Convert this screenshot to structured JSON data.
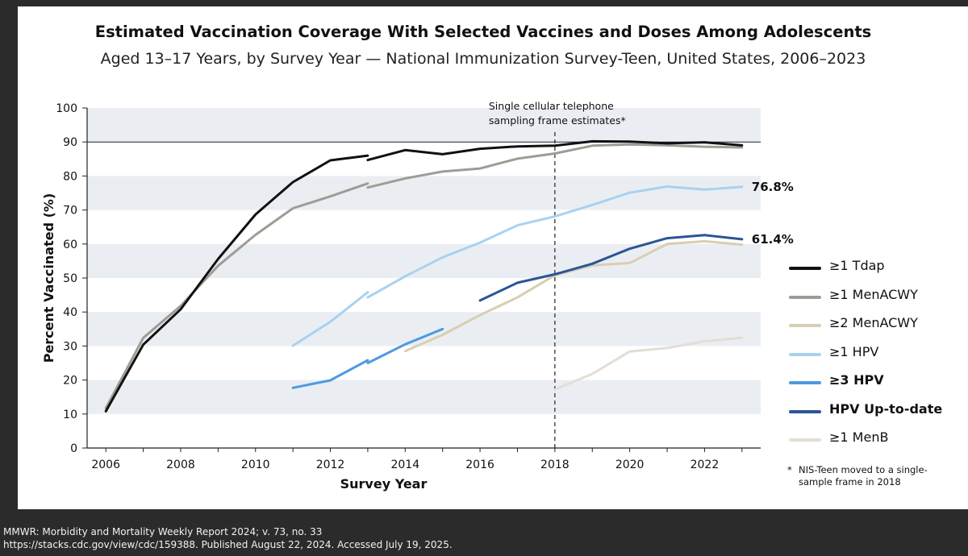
{
  "title": "Estimated Vaccination Coverage With Selected Vaccines and Doses Among Adolescents",
  "subtitle": "Aged 13–17 Years, by Survey Year — National Immunization Survey-Teen, United States, 2006–2023",
  "source": {
    "line1": "MMWR: Morbidity and Mortality Weekly Report 2024; v. 73, no. 33",
    "line2": "https://stacks.cdc.gov/view/cdc/159388. Published August 22, 2024. Accessed July 19, 2025."
  },
  "footnote": {
    "marker": "*",
    "text": "NIS-Teen moved to a single-sample frame in 2018"
  },
  "chart_data": {
    "type": "line",
    "xlabel": "Survey Year",
    "ylabel": "Percent Vaccinated (%)",
    "xlim": [
      2006,
      2023
    ],
    "ylim": [
      0,
      100
    ],
    "xticks": [
      2006,
      2008,
      2010,
      2012,
      2014,
      2016,
      2018,
      2020,
      2022
    ],
    "yticks": [
      0,
      10,
      20,
      30,
      40,
      50,
      60,
      70,
      80,
      90,
      100
    ],
    "grid": "alternating horizontal bands",
    "legend_position": "right",
    "reference_line": {
      "y": 90
    },
    "vline": {
      "x": 2018,
      "label_line1": "Single cellular telephone",
      "label_line2": "sampling frame estimates*"
    },
    "series": [
      {
        "name": "≥1 Tdap",
        "color": "#111111",
        "width": 3,
        "segments": [
          [
            [
              2006,
              10.8
            ],
            [
              2007,
              30.4
            ],
            [
              2008,
              40.8
            ],
            [
              2009,
              55.6
            ],
            [
              2010,
              68.7
            ],
            [
              2011,
              78.2
            ],
            [
              2012,
              84.6
            ],
            [
              2013,
              86.0
            ]
          ],
          [
            [
              2013,
              84.7
            ],
            [
              2014,
              87.6
            ],
            [
              2015,
              86.4
            ],
            [
              2016,
              88.0
            ],
            [
              2017,
              88.7
            ],
            [
              2018,
              88.9
            ],
            [
              2019,
              90.2
            ],
            [
              2020,
              90.1
            ],
            [
              2021,
              89.6
            ],
            [
              2022,
              89.9
            ],
            [
              2023,
              89.0
            ]
          ]
        ]
      },
      {
        "name": "≥1 MenACWY",
        "color": "#9d9d95",
        "width": 3,
        "segments": [
          [
            [
              2006,
              11.7
            ],
            [
              2007,
              32.4
            ],
            [
              2008,
              41.8
            ],
            [
              2009,
              53.6
            ],
            [
              2010,
              62.7
            ],
            [
              2011,
              70.5
            ],
            [
              2012,
              74.0
            ],
            [
              2013,
              77.8
            ]
          ],
          [
            [
              2013,
              76.6
            ],
            [
              2014,
              79.3
            ],
            [
              2015,
              81.3
            ],
            [
              2016,
              82.2
            ],
            [
              2017,
              85.1
            ],
            [
              2018,
              86.6
            ],
            [
              2019,
              88.9
            ],
            [
              2020,
              89.3
            ],
            [
              2021,
              89.0
            ],
            [
              2022,
              88.6
            ],
            [
              2023,
              88.4
            ]
          ]
        ]
      },
      {
        "name": "≥2 MenACWY",
        "color": "#d9ceb2",
        "width": 3,
        "segments": [
          [
            [
              2014,
              28.5
            ],
            [
              2015,
              33.3
            ],
            [
              2016,
              39.1
            ],
            [
              2017,
              44.3
            ],
            [
              2018,
              50.8
            ],
            [
              2019,
              53.7
            ],
            [
              2020,
              54.4
            ],
            [
              2021,
              60.0
            ],
            [
              2022,
              60.8
            ],
            [
              2023,
              59.8
            ]
          ]
        ]
      },
      {
        "name": "≥1 HPV",
        "color": "#a9d2ef",
        "width": 3,
        "segments": [
          [
            [
              2011,
              30.1
            ],
            [
              2012,
              37.1
            ],
            [
              2013,
              45.8
            ]
          ],
          [
            [
              2013,
              44.3
            ],
            [
              2014,
              50.5
            ],
            [
              2015,
              56.1
            ],
            [
              2016,
              60.4
            ],
            [
              2017,
              65.5
            ],
            [
              2018,
              68.1
            ],
            [
              2019,
              71.5
            ],
            [
              2020,
              75.1
            ],
            [
              2021,
              76.9
            ],
            [
              2022,
              76.0
            ],
            [
              2023,
              76.8
            ]
          ]
        ]
      },
      {
        "name": "≥3 HPV",
        "color": "#4d9ae2",
        "width": 3,
        "segments": [
          [
            [
              2011,
              17.7
            ],
            [
              2012,
              19.9
            ],
            [
              2013,
              25.8
            ]
          ],
          [
            [
              2013,
              25.0
            ],
            [
              2014,
              30.5
            ],
            [
              2015,
              35.0
            ]
          ]
        ]
      },
      {
        "name": "HPV Up-to-date",
        "color": "#2a5597",
        "width": 3,
        "segments": [
          [
            [
              2016,
              43.4
            ],
            [
              2017,
              48.6
            ],
            [
              2018,
              51.1
            ],
            [
              2019,
              54.2
            ],
            [
              2020,
              58.6
            ],
            [
              2021,
              61.7
            ],
            [
              2022,
              62.6
            ],
            [
              2023,
              61.4
            ]
          ]
        ]
      },
      {
        "name": "≥1 MenB",
        "color": "#e3ded4",
        "width": 3,
        "segments": [
          [
            [
              2018,
              17.2
            ],
            [
              2019,
              21.8
            ],
            [
              2020,
              28.4
            ],
            [
              2021,
              29.4
            ],
            [
              2022,
              31.4
            ],
            [
              2023,
              32.4
            ]
          ]
        ]
      }
    ],
    "annotations": [
      {
        "text": "76.8%",
        "x": 2023,
        "y": 76.8
      },
      {
        "text": "61.4%",
        "x": 2023,
        "y": 61.4
      }
    ]
  }
}
